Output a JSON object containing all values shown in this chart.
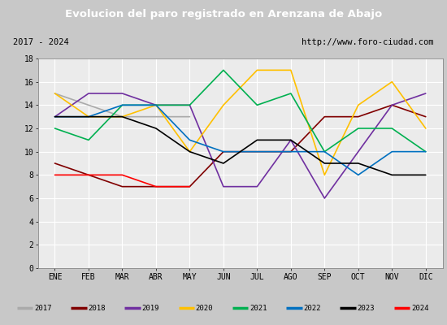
{
  "title": "Evolucion del paro registrado en Arenzana de Abajo",
  "title_color": "#ffffff",
  "title_bg": "#4472c4",
  "subtitle_left": "2017 - 2024",
  "subtitle_right": "http://www.foro-ciudad.com",
  "months": [
    "ENE",
    "FEB",
    "MAR",
    "ABR",
    "MAY",
    "JUN",
    "JUL",
    "AGO",
    "SEP",
    "OCT",
    "NOV",
    "DIC"
  ],
  "ylim": [
    0,
    18
  ],
  "yticks": [
    0,
    2,
    4,
    6,
    8,
    10,
    12,
    14,
    16,
    18
  ],
  "series": [
    {
      "label": "2017",
      "color": "#aaaaaa",
      "data": [
        15,
        14,
        13,
        13,
        13,
        null,
        null,
        null,
        null,
        null,
        null,
        null
      ]
    },
    {
      "label": "2018",
      "color": "#800000",
      "data": [
        9,
        8,
        7,
        7,
        7,
        10,
        10,
        10,
        13,
        13,
        14,
        13
      ]
    },
    {
      "label": "2019",
      "color": "#7030a0",
      "data": [
        13,
        15,
        15,
        14,
        14,
        7,
        7,
        11,
        6,
        10,
        14,
        15
      ]
    },
    {
      "label": "2020",
      "color": "#ffc000",
      "data": [
        15,
        13,
        13,
        14,
        10,
        14,
        17,
        17,
        8,
        14,
        16,
        12
      ]
    },
    {
      "label": "2021",
      "color": "#00b050",
      "data": [
        12,
        11,
        14,
        14,
        14,
        17,
        14,
        15,
        10,
        12,
        12,
        10
      ]
    },
    {
      "label": "2022",
      "color": "#0070c0",
      "data": [
        13,
        13,
        14,
        14,
        11,
        10,
        10,
        10,
        10,
        8,
        10,
        10
      ]
    },
    {
      "label": "2023",
      "color": "#000000",
      "data": [
        13,
        13,
        13,
        12,
        10,
        9,
        11,
        11,
        9,
        9,
        8,
        8
      ]
    },
    {
      "label": "2024",
      "color": "#ff0000",
      "data": [
        8,
        8,
        8,
        7,
        7,
        null,
        null,
        null,
        null,
        null,
        null,
        null
      ]
    }
  ],
  "legend_bg": "#e0e0e0",
  "plot_bg": "#ebebeb",
  "grid_color": "#ffffff",
  "outer_bg": "#c8c8c8",
  "box_edge_color": "#888888"
}
